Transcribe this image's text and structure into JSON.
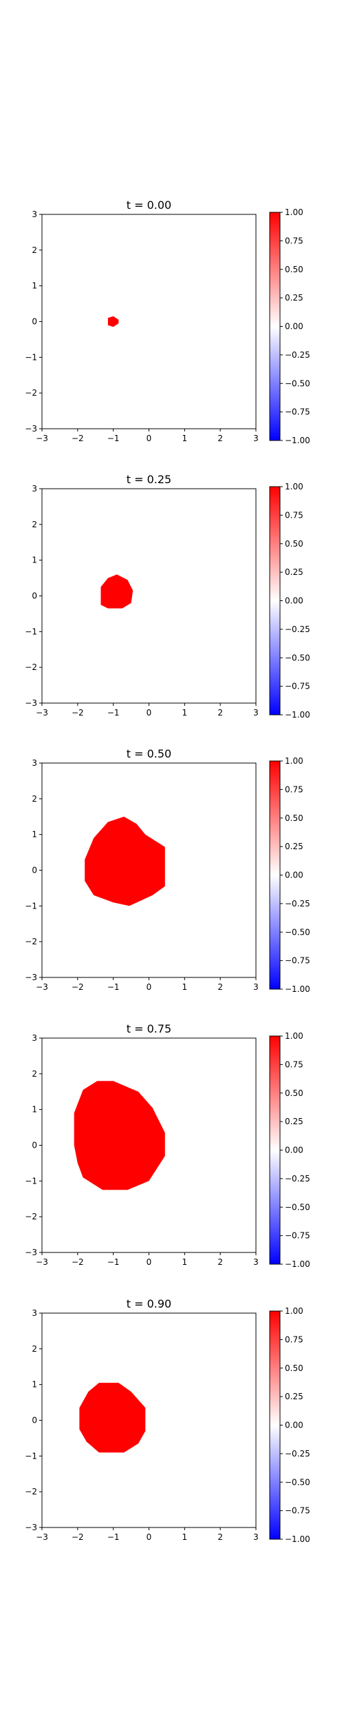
{
  "figure": {
    "colorbar_ticks": [
      "1.00",
      "0.75",
      "0.50",
      "0.25",
      "0.00",
      "−0.25",
      "−0.50",
      "−0.75",
      "−1.00"
    ]
  },
  "chart_data": [
    {
      "type": "heatmap",
      "title": "t = 0.00",
      "xlabel": "",
      "ylabel": "",
      "xlim": [
        -3,
        3
      ],
      "ylim": [
        -3,
        3
      ],
      "x_ticks": [
        "−3",
        "−2",
        "−1",
        "0",
        "1",
        "2",
        "3"
      ],
      "y_ticks": [
        "3",
        "2",
        "1",
        "0",
        "−1",
        "−2",
        "−3"
      ],
      "colormap": "bwr",
      "vmin": -1,
      "vmax": 1,
      "value_inside": 1,
      "value_outside": 0,
      "region": [
        [
          -1.15,
          -0.1
        ],
        [
          -1.15,
          0.1
        ],
        [
          -1.0,
          0.15
        ],
        [
          -0.85,
          0.05
        ],
        [
          -0.85,
          -0.05
        ],
        [
          -1.0,
          -0.15
        ]
      ]
    },
    {
      "type": "heatmap",
      "title": "t = 0.25",
      "xlabel": "",
      "ylabel": "",
      "xlim": [
        -3,
        3
      ],
      "ylim": [
        -3,
        3
      ],
      "x_ticks": [
        "−3",
        "−2",
        "−1",
        "0",
        "1",
        "2",
        "3"
      ],
      "y_ticks": [
        "3",
        "2",
        "1",
        "0",
        "−1",
        "−2",
        "−3"
      ],
      "colormap": "bwr",
      "vmin": -1,
      "vmax": 1,
      "value_inside": 1,
      "value_outside": 0,
      "region": [
        [
          -1.35,
          -0.25
        ],
        [
          -1.35,
          0.25
        ],
        [
          -1.15,
          0.5
        ],
        [
          -0.9,
          0.6
        ],
        [
          -0.6,
          0.45
        ],
        [
          -0.45,
          0.15
        ],
        [
          -0.5,
          -0.2
        ],
        [
          -0.75,
          -0.35
        ],
        [
          -1.15,
          -0.35
        ]
      ]
    },
    {
      "type": "heatmap",
      "title": "t = 0.50",
      "xlabel": "",
      "ylabel": "",
      "xlim": [
        -3,
        3
      ],
      "ylim": [
        -3,
        3
      ],
      "x_ticks": [
        "−3",
        "−2",
        "−1",
        "0",
        "1",
        "2",
        "3"
      ],
      "y_ticks": [
        "3",
        "2",
        "1",
        "0",
        "−1",
        "−2",
        "−3"
      ],
      "colormap": "bwr",
      "vmin": -1,
      "vmax": 1,
      "value_inside": 1,
      "value_outside": 0,
      "region": [
        [
          -1.8,
          -0.3
        ],
        [
          -1.8,
          0.3
        ],
        [
          -1.55,
          0.9
        ],
        [
          -1.15,
          1.35
        ],
        [
          -0.7,
          1.5
        ],
        [
          -0.35,
          1.3
        ],
        [
          -0.1,
          1.0
        ],
        [
          0.45,
          0.65
        ],
        [
          0.45,
          -0.45
        ],
        [
          0.1,
          -0.7
        ],
        [
          -0.55,
          -1.0
        ],
        [
          -1.0,
          -0.9
        ],
        [
          -1.55,
          -0.7
        ]
      ]
    },
    {
      "type": "heatmap",
      "title": "t = 0.75",
      "xlabel": "",
      "ylabel": "",
      "xlim": [
        -3,
        3
      ],
      "ylim": [
        -3,
        3
      ],
      "x_ticks": [
        "−3",
        "−2",
        "−1",
        "0",
        "1",
        "2",
        "3"
      ],
      "y_ticks": [
        "3",
        "2",
        "1",
        "0",
        "−1",
        "−2",
        "−3"
      ],
      "colormap": "bwr",
      "vmin": -1,
      "vmax": 1,
      "value_inside": 1,
      "value_outside": 0,
      "region": [
        [
          -2.1,
          0.0
        ],
        [
          -2.1,
          0.9
        ],
        [
          -1.85,
          1.55
        ],
        [
          -1.45,
          1.8
        ],
        [
          -1.0,
          1.8
        ],
        [
          -0.3,
          1.5
        ],
        [
          0.1,
          1.05
        ],
        [
          0.45,
          0.35
        ],
        [
          0.45,
          -0.3
        ],
        [
          0.0,
          -1.0
        ],
        [
          -0.6,
          -1.25
        ],
        [
          -1.3,
          -1.25
        ],
        [
          -1.85,
          -0.9
        ],
        [
          -2.0,
          -0.5
        ]
      ]
    },
    {
      "type": "heatmap",
      "title": "t = 0.90",
      "xlabel": "",
      "ylabel": "",
      "xlim": [
        -3,
        3
      ],
      "ylim": [
        -3,
        3
      ],
      "x_ticks": [
        "−3",
        "−2",
        "−1",
        "0",
        "1",
        "2",
        "3"
      ],
      "y_ticks": [
        "3",
        "2",
        "1",
        "0",
        "−1",
        "−2",
        "−3"
      ],
      "colormap": "bwr",
      "vmin": -1,
      "vmax": 1,
      "value_inside": 1,
      "value_outside": 0,
      "region": [
        [
          -1.95,
          -0.25
        ],
        [
          -1.95,
          0.35
        ],
        [
          -1.7,
          0.8
        ],
        [
          -1.4,
          1.05
        ],
        [
          -0.85,
          1.05
        ],
        [
          -0.5,
          0.8
        ],
        [
          -0.1,
          0.35
        ],
        [
          -0.1,
          -0.3
        ],
        [
          -0.3,
          -0.65
        ],
        [
          -0.7,
          -0.9
        ],
        [
          -1.4,
          -0.9
        ],
        [
          -1.75,
          -0.6
        ]
      ]
    }
  ]
}
